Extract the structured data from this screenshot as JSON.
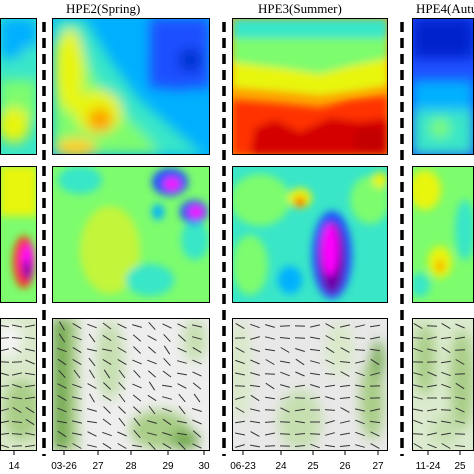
{
  "chart_data": {
    "type": "heatmap",
    "title": "",
    "panel_titles": [
      {
        "id": "hpe2",
        "label": "HPE2(Spring)"
      },
      {
        "id": "hpe3",
        "label": "HPE3(Summer)"
      },
      {
        "id": "hpe4",
        "label": "HPE4(Autu"
      }
    ],
    "rows": [
      "row-1",
      "row-2",
      "row-3"
    ],
    "column_groups": [
      {
        "id": "hpe1-partial",
        "x_ticks": [
          "14"
        ]
      },
      {
        "id": "hpe2",
        "x_ticks": [
          "03-26",
          "27",
          "28",
          "29",
          "30"
        ]
      },
      {
        "id": "hpe3",
        "x_ticks": [
          "06-23",
          "24",
          "25",
          "26",
          "27"
        ]
      },
      {
        "id": "hpe4-partial",
        "x_ticks": [
          "11-24",
          "25"
        ]
      }
    ],
    "colorscale_row1_row2": [
      "#00008b",
      "#1f4fff",
      "#00b0ff",
      "#39e6c8",
      "#7dfc6e",
      "#e8f50a",
      "#ff9e00",
      "#ff3300",
      "#c40000"
    ],
    "colorscale_row2_extreme": [
      "#6a00a8",
      "#ff00ff"
    ],
    "colorscale_row3": [
      "#f4f4f4",
      "#d9e9c9",
      "#a8cd86",
      "#6fa84c"
    ],
    "event_separator": "dashed-black",
    "grid": false,
    "legend": "none"
  }
}
